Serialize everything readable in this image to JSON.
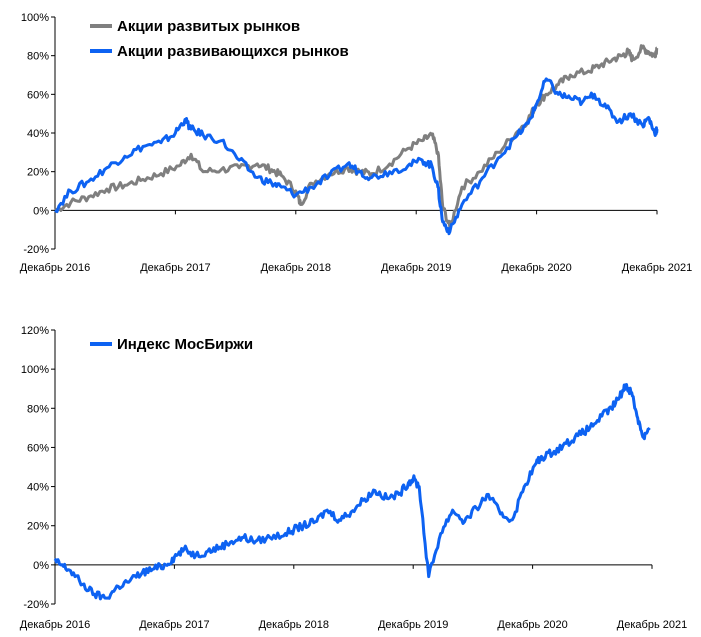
{
  "chart_data": [
    {
      "type": "line",
      "title": "",
      "xlabel": "",
      "ylabel": "",
      "ylim": [
        -20,
        100
      ],
      "yticks": [
        -20,
        0,
        20,
        40,
        60,
        80,
        100
      ],
      "ytick_labels": [
        "-20%",
        "0%",
        "20%",
        "40%",
        "60%",
        "80%",
        "100%"
      ],
      "xlim": [
        2016.92,
        2021.92
      ],
      "xtick_labels": [
        "Декабрь 2016",
        "Декабрь 2017",
        "Декабрь 2018",
        "Декабрь 2019",
        "Декабрь 2020",
        "Декабрь 2021"
      ],
      "xtick_values": [
        2016.92,
        2017.92,
        2018.92,
        2019.92,
        2020.92,
        2021.92
      ],
      "legend": [
        "Акции развитых рынков",
        "Акции развивающихся рынков"
      ],
      "series": [
        {
          "name": "Акции развитых рынков",
          "color": "#7f7f7f",
          "x": [
            2016.92,
            2017.05,
            2017.2,
            2017.35,
            2017.5,
            2017.65,
            2017.8,
            2017.95,
            2018.05,
            2018.15,
            2018.3,
            2018.45,
            2018.6,
            2018.72,
            2018.8,
            2018.92,
            2018.96,
            2019.05,
            2019.2,
            2019.35,
            2019.45,
            2019.55,
            2019.7,
            2019.85,
            2019.97,
            2020.05,
            2020.1,
            2020.14,
            2020.2,
            2020.3,
            2020.45,
            2020.6,
            2020.75,
            2020.85,
            2020.92,
            2021.0,
            2021.1,
            2021.2,
            2021.35,
            2021.45,
            2021.55,
            2021.63,
            2021.68,
            2021.72,
            2021.8,
            2021.85,
            2021.9,
            2021.92
          ],
          "values": [
            0,
            4,
            7,
            11,
            13,
            16,
            19,
            23,
            29,
            20,
            21,
            22,
            24,
            21,
            18,
            10,
            3,
            14,
            19,
            22,
            20,
            19,
            24,
            32,
            36,
            39,
            30,
            2,
            -9,
            12,
            20,
            30,
            40,
            47,
            55,
            60,
            65,
            70,
            72,
            75,
            78,
            80,
            82,
            78,
            84,
            82,
            80,
            84
          ]
        },
        {
          "name": "Акции развивающихся рынков",
          "color": "#0d62f2",
          "x": [
            2016.92,
            2017.05,
            2017.2,
            2017.35,
            2017.5,
            2017.65,
            2017.8,
            2017.92,
            2018.0,
            2018.05,
            2018.15,
            2018.3,
            2018.45,
            2018.6,
            2018.72,
            2018.8,
            2018.92,
            2019.05,
            2019.2,
            2019.35,
            2019.45,
            2019.55,
            2019.7,
            2019.85,
            2019.97,
            2020.05,
            2020.1,
            2020.14,
            2020.2,
            2020.3,
            2020.45,
            2020.6,
            2020.75,
            2020.85,
            2020.92,
            2021.0,
            2021.1,
            2021.2,
            2021.3,
            2021.4,
            2021.5,
            2021.6,
            2021.7,
            2021.8,
            2021.85,
            2021.9,
            2021.92
          ],
          "values": [
            0,
            10,
            15,
            22,
            28,
            33,
            35,
            40,
            47,
            42,
            39,
            36,
            26,
            17,
            14,
            12,
            8,
            12,
            18,
            24,
            20,
            17,
            20,
            23,
            26,
            23,
            12,
            -6,
            -11,
            3,
            15,
            27,
            38,
            45,
            55,
            68,
            60,
            58,
            56,
            60,
            53,
            46,
            50,
            44,
            48,
            40,
            42
          ]
        }
      ]
    },
    {
      "type": "line",
      "title": "",
      "xlabel": "",
      "ylabel": "",
      "ylim": [
        -20,
        120
      ],
      "yticks": [
        -20,
        0,
        20,
        40,
        60,
        80,
        100,
        120
      ],
      "ytick_labels": [
        "-20%",
        "0%",
        "20%",
        "40%",
        "60%",
        "80%",
        "100%",
        "120%"
      ],
      "xlim": [
        2016.92,
        2021.92
      ],
      "xtick_labels": [
        "Декабрь 2016",
        "Декабрь 2017",
        "Декабрь 2018",
        "Декабрь 2019",
        "Декабрь 2020",
        "Декабрь 2021"
      ],
      "xtick_values": [
        2016.92,
        2017.92,
        2018.92,
        2019.92,
        2020.92,
        2021.92
      ],
      "legend": [
        "Индекс МосБиржи"
      ],
      "series": [
        {
          "name": "Индекс МосБиржи",
          "color": "#0d62f2",
          "x": [
            2016.92,
            2016.97,
            2017.05,
            2017.15,
            2017.25,
            2017.35,
            2017.45,
            2017.55,
            2017.65,
            2017.75,
            2017.85,
            2017.92,
            2018.0,
            2018.1,
            2018.2,
            2018.3,
            2018.4,
            2018.5,
            2018.6,
            2018.72,
            2018.85,
            2018.92,
            2019.0,
            2019.1,
            2019.2,
            2019.3,
            2019.4,
            2019.5,
            2019.6,
            2019.7,
            2019.8,
            2019.88,
            2019.92,
            2019.97,
            2020.05,
            2020.15,
            2020.25,
            2020.35,
            2020.45,
            2020.55,
            2020.65,
            2020.75,
            2020.85,
            2020.95,
            2021.0,
            2021.1,
            2021.2,
            2021.3,
            2021.4,
            2021.5,
            2021.58,
            2021.65,
            2021.7,
            2021.75,
            2021.8,
            2021.85,
            2021.9
          ],
          "values": [
            2,
            0,
            -3,
            -10,
            -15,
            -17,
            -11,
            -8,
            -4,
            -2,
            0,
            4,
            8,
            5,
            7,
            9,
            12,
            14,
            12,
            14,
            16,
            18,
            20,
            22,
            28,
            23,
            27,
            33,
            38,
            34,
            36,
            42,
            44,
            40,
            -6,
            16,
            28,
            22,
            29,
            36,
            26,
            23,
            40,
            52,
            55,
            58,
            62,
            66,
            70,
            76,
            80,
            86,
            92,
            88,
            75,
            65,
            70
          ]
        }
      ]
    }
  ]
}
